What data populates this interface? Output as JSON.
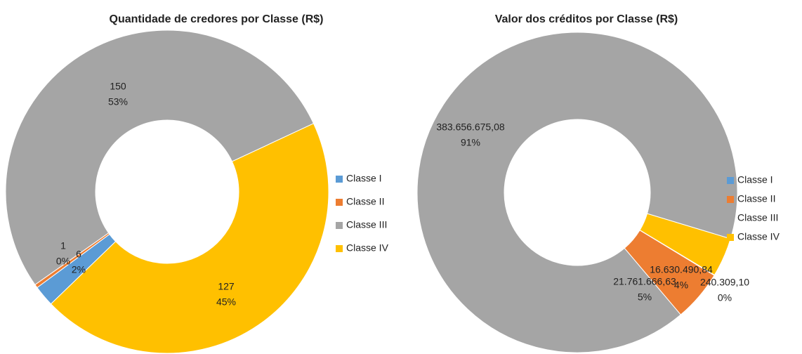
{
  "chart_data": [
    {
      "type": "donut",
      "title": "Quantidade de credores por Classe (R$)",
      "categories": [
        "Classe I",
        "Classe II",
        "Classe III",
        "Classe IV"
      ],
      "values": [
        6,
        1,
        150,
        127
      ],
      "percent_labels": [
        "2%",
        "0%",
        "53%",
        "45%"
      ],
      "colors": [
        "#5b9bd5",
        "#ed7d31",
        "#a5a5a5",
        "#ffc000"
      ],
      "legend": "right"
    },
    {
      "type": "donut",
      "title": "Valor dos créditos por Classe (R$)",
      "categories": [
        "Classe I",
        "Classe II",
        "Classe III",
        "Classe IV"
      ],
      "values": [
        240309.1,
        21761666.63,
        383656675.08,
        16630490.84
      ],
      "value_labels": [
        "240.309,10",
        "21.761.666,63",
        "383.656.675,08",
        "16.630.490,84"
      ],
      "percent_labels": [
        "0%",
        "5%",
        "91%",
        "4%"
      ],
      "colors": [
        "#5b9bd5",
        "#ed7d31",
        "#a5a5a5",
        "#ffc000"
      ],
      "legend": "right"
    }
  ]
}
